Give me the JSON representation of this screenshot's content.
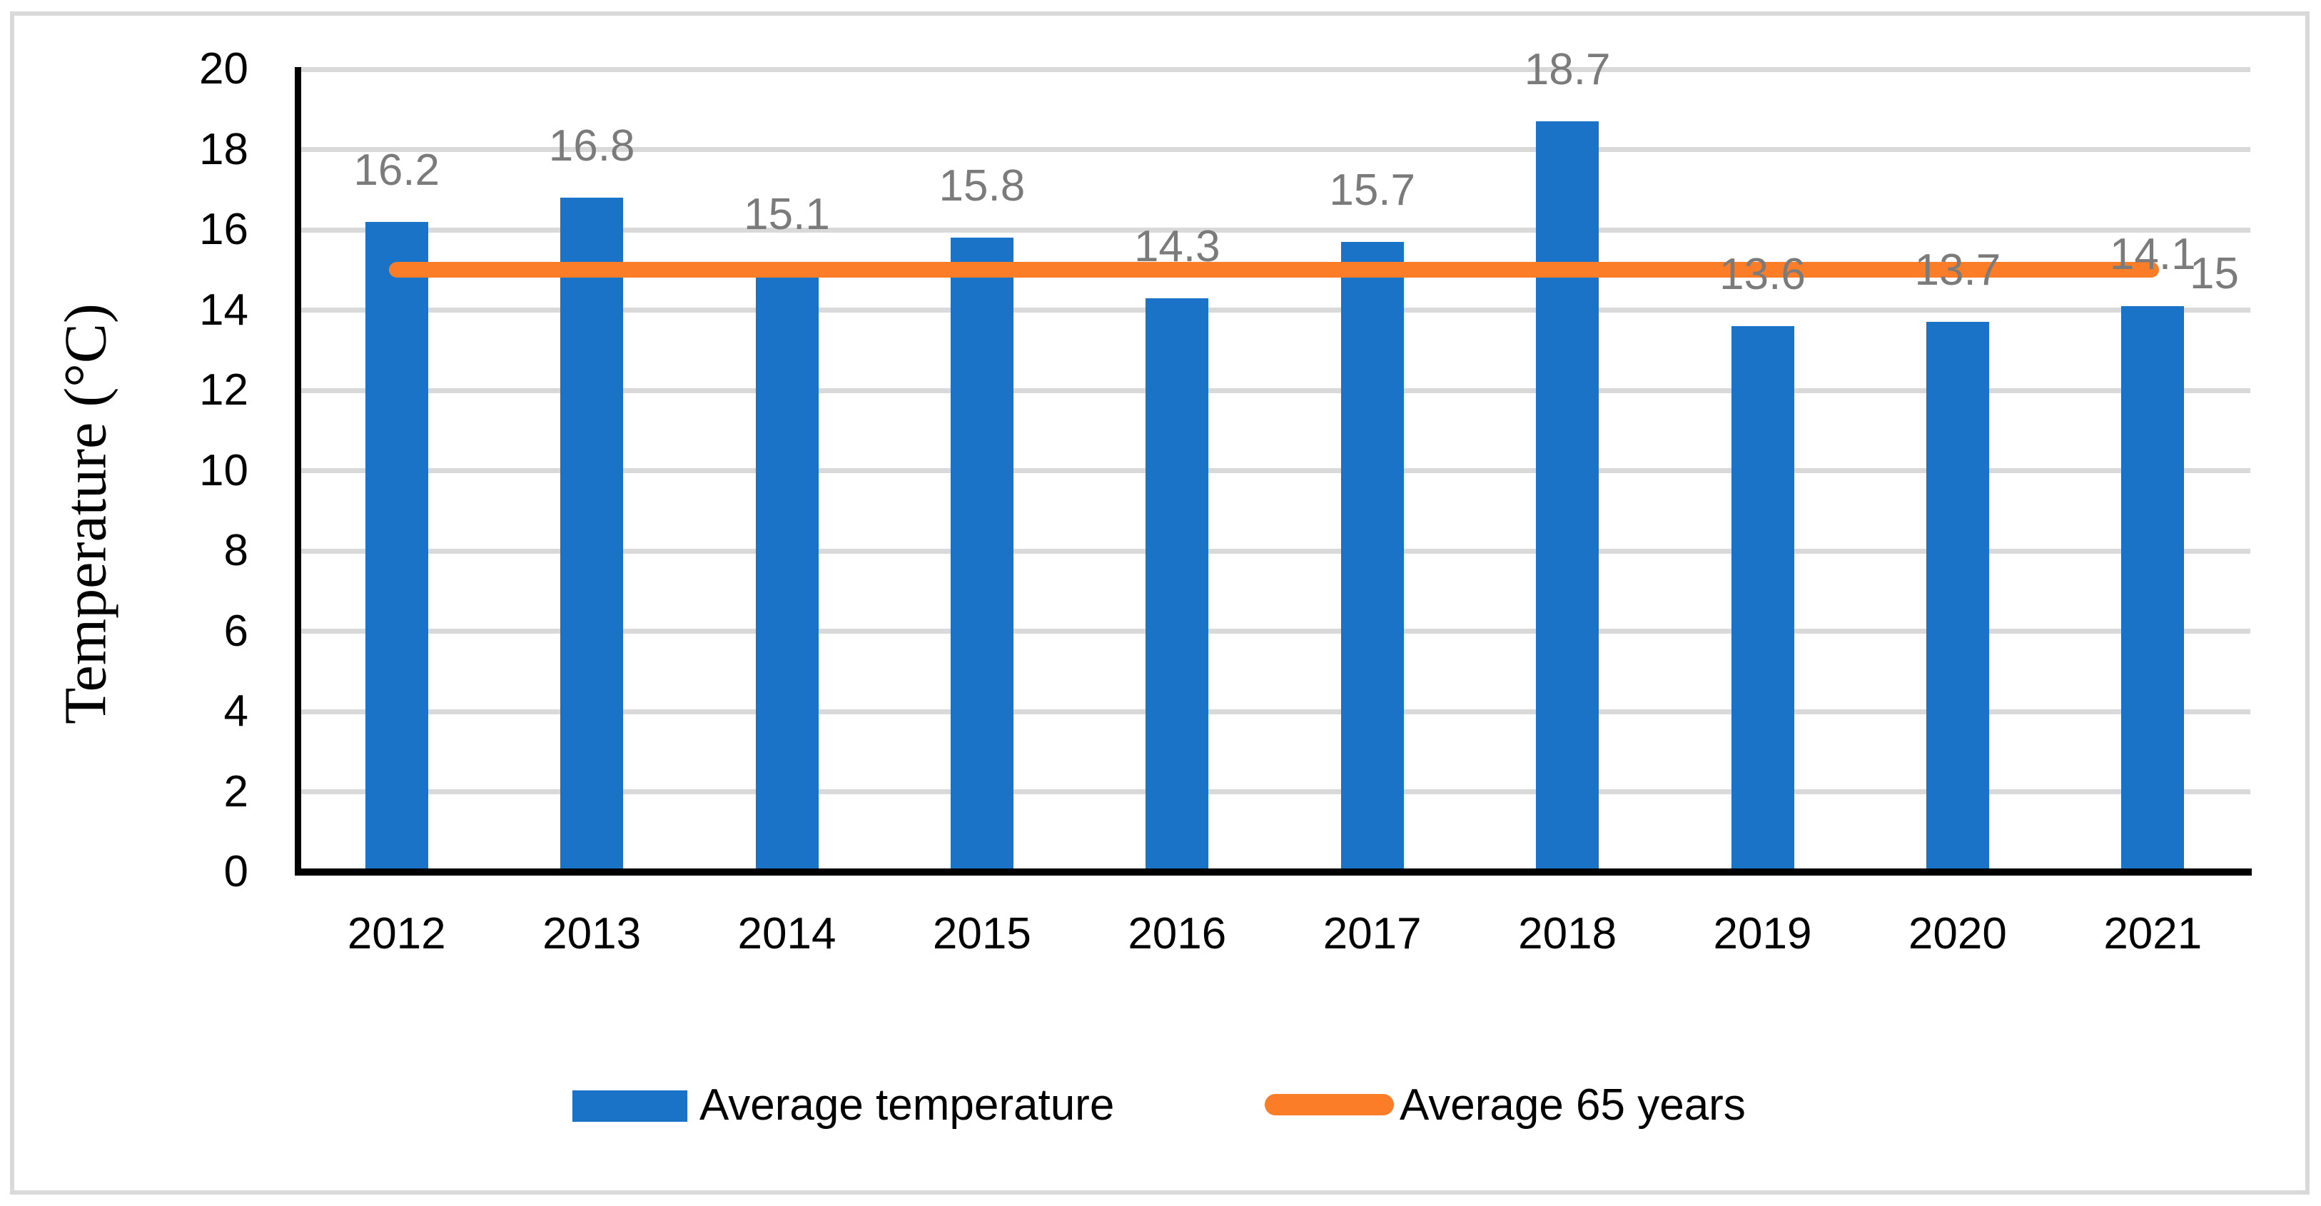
{
  "figure": {
    "background": "#ffffff",
    "border_color": "#d9d9d9"
  },
  "chart_data": {
    "type": "bar",
    "title": "",
    "xlabel": "",
    "ylabel": "Temperature (°C)",
    "ylim": [
      0,
      20
    ],
    "ytick_step": 2,
    "yticks": [
      "0",
      "2",
      "4",
      "6",
      "8",
      "10",
      "12",
      "14",
      "16",
      "18",
      "20"
    ],
    "grid": "horizontal",
    "gridline_color": "#d9d9d9",
    "data_label_color": "#7b7b7b",
    "axis_color": "#000000",
    "legend_position": "bottom",
    "categories": [
      "2012",
      "2013",
      "2014",
      "2015",
      "2016",
      "2017",
      "2018",
      "2019",
      "2020",
      "2021"
    ],
    "series": [
      {
        "name": "Average temperature",
        "type": "bar",
        "color": "#1b73c8",
        "values": [
          16.2,
          16.8,
          15.1,
          15.8,
          14.3,
          15.7,
          18.7,
          13.6,
          13.7,
          14.1
        ],
        "data_labels": [
          "16.2",
          "16.8",
          "15.1",
          "15.8",
          "14.3",
          "15.7",
          "18.7",
          "13.6",
          "13.7",
          "14.1"
        ]
      },
      {
        "name": "Average 65 years",
        "type": "line",
        "color": "#fb7d28",
        "value": 15,
        "end_label": "15"
      }
    ]
  },
  "legend": {
    "items": [
      {
        "label": "Average temperature",
        "swatch": "bar-swatch",
        "color": "#1b73c8"
      },
      {
        "label": "Average 65 years",
        "swatch": "line-swatch",
        "color": "#fb7d28"
      }
    ]
  }
}
